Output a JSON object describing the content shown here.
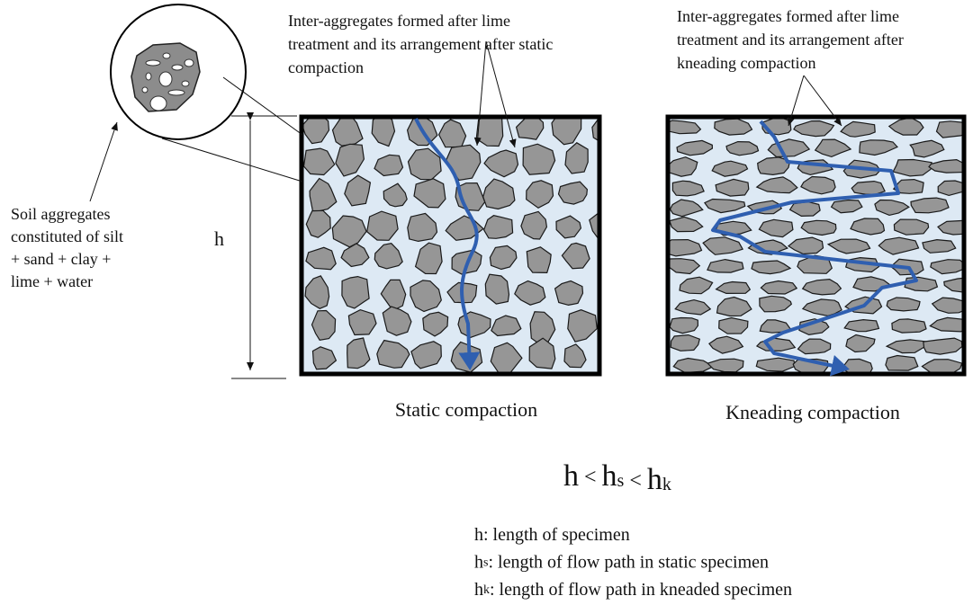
{
  "annotations": {
    "static_inter": [
      "Inter-aggregates formed after lime",
      "treatment and its arrangement after static",
      "compaction"
    ],
    "kneading_inter": [
      "Inter-aggregates formed after lime",
      "treatment and its arrangement after",
      "kneading compaction"
    ],
    "soil_aggregates": [
      "Soil aggregates",
      "constituted of silt",
      "+ sand + clay +",
      "lime + water"
    ],
    "height": "h"
  },
  "captions": {
    "static": "Static compaction",
    "kneading": "Kneading compaction"
  },
  "formula": [
    {
      "text": "h"
    },
    {
      "text": "<"
    },
    {
      "text": "h",
      "sub": "s"
    },
    {
      "text": "<"
    },
    {
      "text": "h",
      "sub": "k"
    }
  ],
  "legend": [
    {
      "symbol": "h",
      "text": ": length of specimen"
    },
    {
      "symbol": "h",
      "sub": "s",
      "text": ": length of flow path in static specimen"
    },
    {
      "symbol": "h",
      "sub": "k",
      "text": ": length of flow path in kneaded specimen"
    }
  ]
}
